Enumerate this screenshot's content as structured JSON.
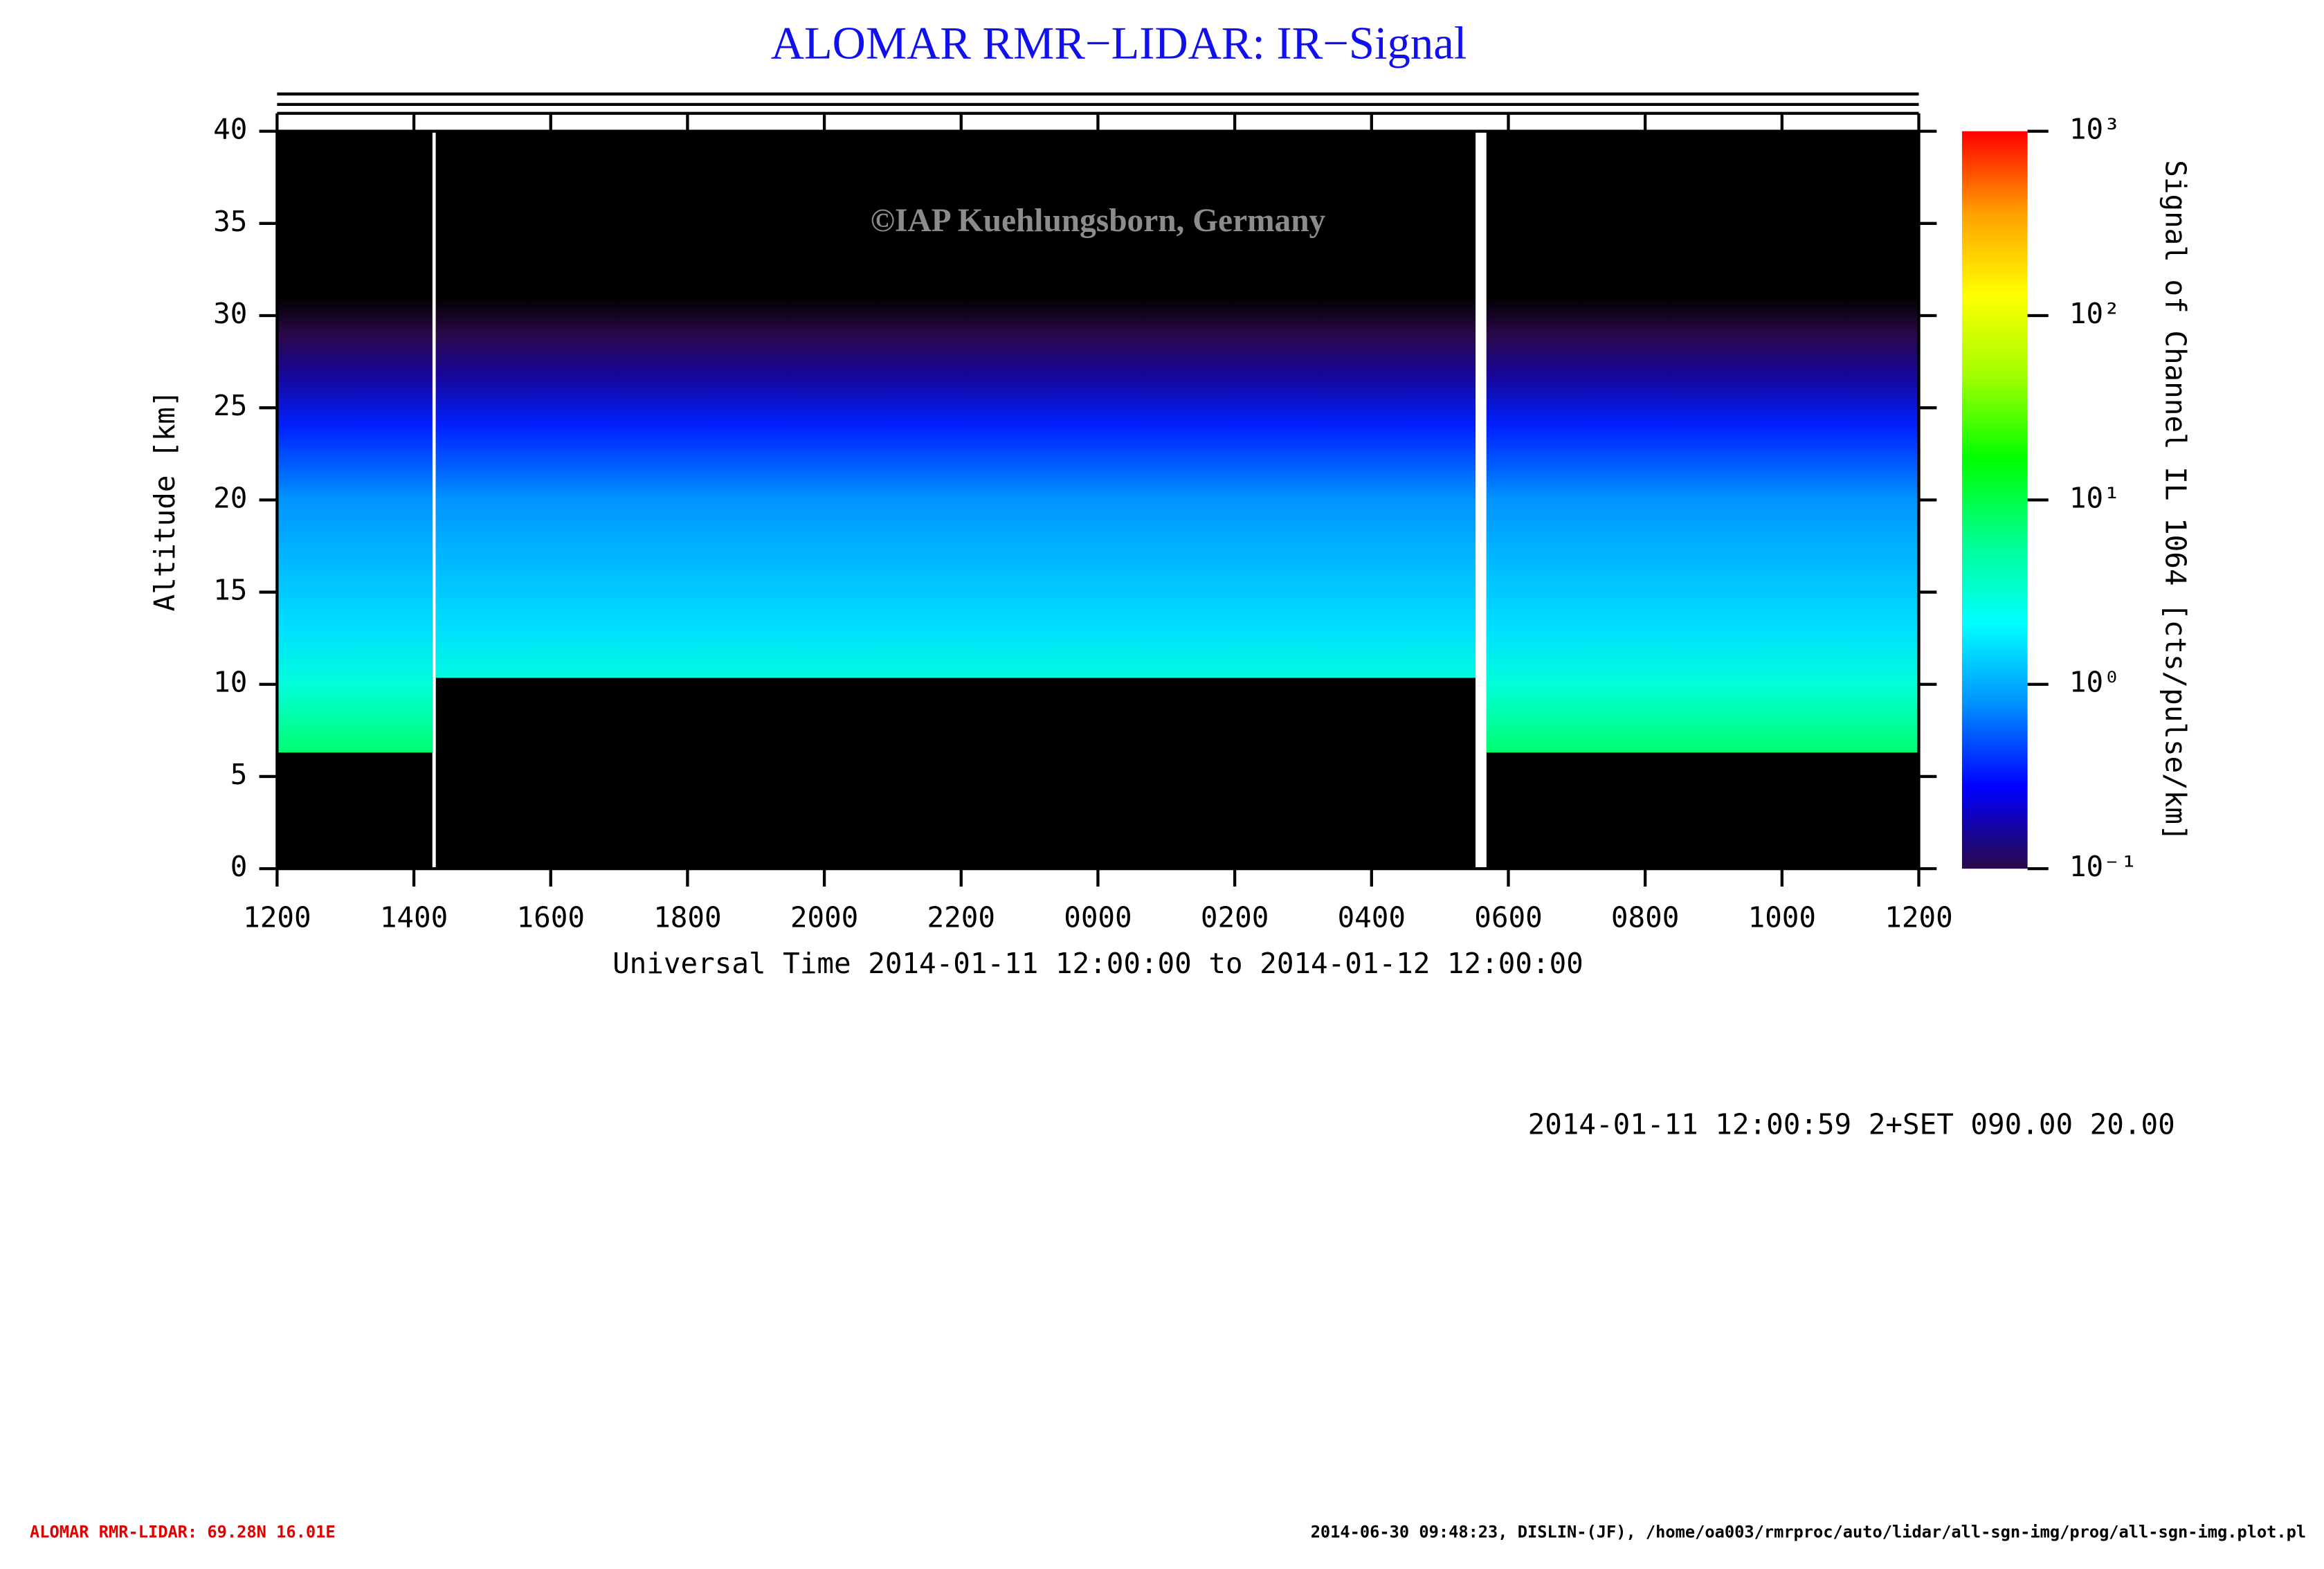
{
  "chart_data": {
    "type": "heatmap",
    "title": "ALOMAR RMR−LIDAR: IR−Signal",
    "watermark": "©IAP Kuehlungsborn, Germany",
    "x_label": "Universal Time 2014-01-11 12:00:00 to 2014-01-12 12:00:00",
    "y_label": "Altitude [km]",
    "colorbar_label": "Signal of Channel IL 1064 [cts/pulse/km]",
    "xlim": [
      0,
      24
    ],
    "xticks": [
      {
        "value": 0,
        "label": "1200"
      },
      {
        "value": 2,
        "label": "1400"
      },
      {
        "value": 4,
        "label": "1600"
      },
      {
        "value": 6,
        "label": "1800"
      },
      {
        "value": 8,
        "label": "2000"
      },
      {
        "value": 10,
        "label": "2200"
      },
      {
        "value": 12,
        "label": "0000"
      },
      {
        "value": 14,
        "label": "0200"
      },
      {
        "value": 16,
        "label": "0400"
      },
      {
        "value": 18,
        "label": "0600"
      },
      {
        "value": 20,
        "label": "0800"
      },
      {
        "value": 22,
        "label": "1000"
      },
      {
        "value": 24,
        "label": "1200"
      }
    ],
    "ylim": [
      0,
      40
    ],
    "yticks": [
      0,
      5,
      10,
      15,
      20,
      25,
      30,
      35,
      40
    ],
    "clim": [
      -1,
      3
    ],
    "cticks": [
      {
        "value": -1,
        "label": "10⁻¹"
      },
      {
        "value": 0,
        "label": "10⁰"
      },
      {
        "value": 1,
        "label": "10¹"
      },
      {
        "value": 2,
        "label": "10²"
      },
      {
        "value": 3,
        "label": "10³"
      }
    ],
    "colormap": [
      "#2a0848",
      "#0000ff",
      "#0090ff",
      "#00ffff",
      "#00ff90",
      "#00ff00",
      "#a0ff00",
      "#ffff00",
      "#ffa000",
      "#ff0000"
    ],
    "segments": [
      {
        "start": 0,
        "end": 2.27,
        "bottom": 6.3
      },
      {
        "start": 2.32,
        "end": 17.52,
        "bottom": 10.35
      },
      {
        "start": 17.68,
        "end": 24,
        "bottom": 6.3
      }
    ],
    "profile": {
      "altitude": [
        6,
        10,
        13,
        16,
        20,
        24,
        27,
        29,
        31
      ],
      "signal": [
        8,
        3,
        1.6,
        1.2,
        0.8,
        0.35,
        0.15,
        0.1,
        0.05
      ]
    },
    "info": "2014-01-11 12:00:59 2+SET 090.00 20.00",
    "footer_left": "ALOMAR RMR-LIDAR: 69.28N 16.01E",
    "footer_right": "2014-06-30 09:48:23, DISLIN-(JF), /home/oa003/rmrproc/auto/lidar/all-sgn-img/prog/all-sgn-img.plot.pl"
  }
}
